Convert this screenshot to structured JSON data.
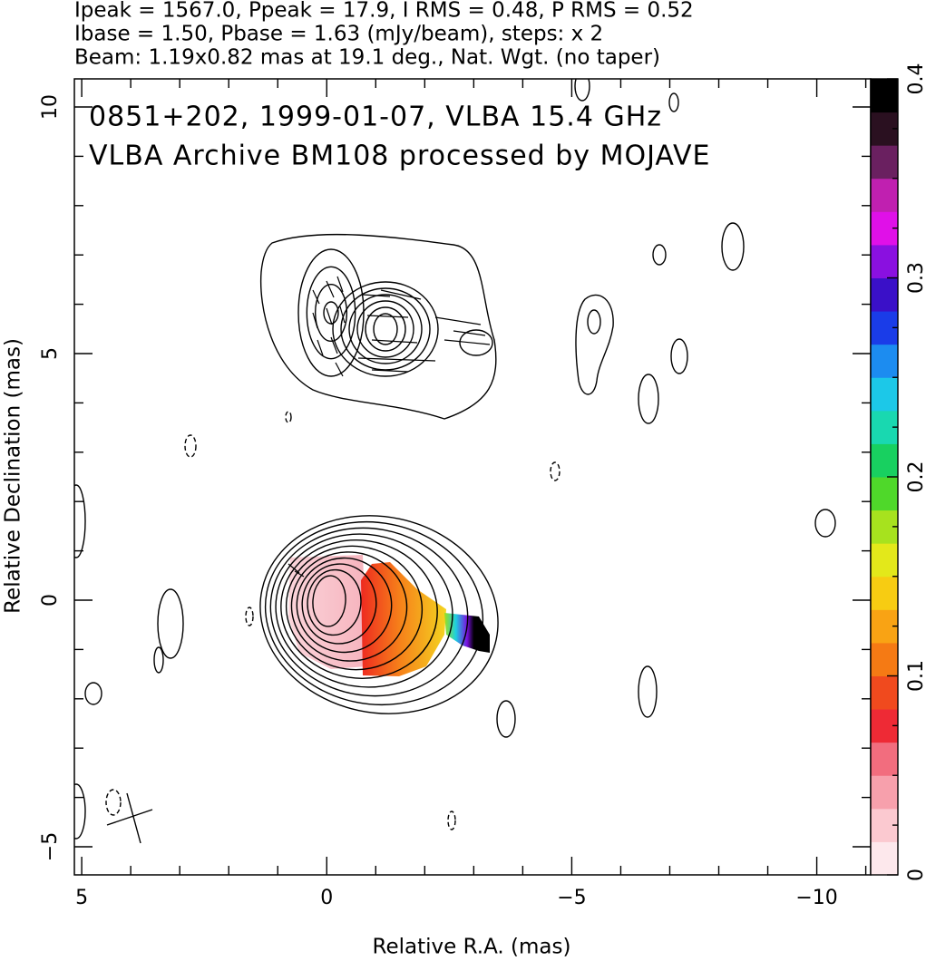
{
  "chart_data": {
    "type": "contour",
    "header": [
      "Ipeak = 1567.0, Ppeak = 17.9, I RMS = 0.48, P RMS = 0.52",
      "Ibase = 1.50, Pbase = 1.63 (mJy/beam), steps: x 2",
      "Beam: 1.19x0.82 mas at 19.1 deg., Nat. Wgt. (no taper)"
    ],
    "annotations": [
      "0851+202, 1999-01-07, VLBA 15.4 GHz",
      "VLBA Archive BM108 processed by MOJAVE"
    ],
    "xlabel": "Relative R.A. (mas)",
    "ylabel": "Relative Declination (mas)",
    "xlim": [
      5.15,
      -11.1
    ],
    "xticks": [
      5,
      0,
      {
        "value": -5,
        "label": "−5"
      },
      {
        "value": -10,
        "label": "−10"
      }
    ],
    "ylim": [
      -5.57,
      10.57
    ],
    "yticks": [
      {
        "value": -5,
        "label": "−5"
      },
      0,
      5,
      10
    ],
    "colorbar": {
      "lim": [
        0,
        0.4
      ],
      "ticks": [
        0,
        0.1,
        0.2,
        0.3,
        0.4
      ],
      "colors": [
        "#fde8ec",
        "#fbc9d0",
        "#f7a0ac",
        "#f26d7e",
        "#ee2a35",
        "#f04a1e",
        "#f57a14",
        "#f9a314",
        "#f7cc12",
        "#e3e81a",
        "#a7e21e",
        "#4fd82a",
        "#18d060",
        "#19d8b0",
        "#1cc8e8",
        "#1c8cf0",
        "#1a3ce8",
        "#3a10c8",
        "#8a10e0",
        "#e010e8",
        "#c020b0",
        "#6a2060",
        "#2a1020",
        "#000000"
      ]
    }
  }
}
